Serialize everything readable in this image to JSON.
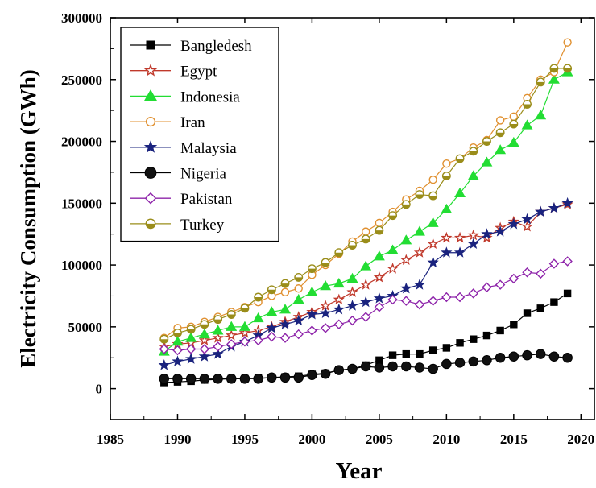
{
  "chart_data": {
    "type": "line",
    "title": "",
    "xlabel": "Year",
    "ylabel": "Electricity Consumption  (GWh)",
    "xlim": [
      1985,
      2021
    ],
    "ylim": [
      -25000,
      300000
    ],
    "xticks": [
      "1985",
      "1990",
      "1995",
      "2000",
      "2005",
      "2010",
      "2015",
      "2020"
    ],
    "yticks": [
      "0",
      "50000",
      "100000",
      "150000",
      "200000",
      "250000",
      "300000"
    ],
    "legend_position": "top-left",
    "grid": false,
    "x": [
      1989,
      1990,
      1991,
      1992,
      1993,
      1994,
      1995,
      1996,
      1997,
      1998,
      1999,
      2000,
      2001,
      2002,
      2003,
      2004,
      2005,
      2006,
      2007,
      2008,
      2009,
      2010,
      2011,
      2012,
      2013,
      2014,
      2015,
      2016,
      2017,
      2018,
      2019
    ],
    "series": [
      {
        "name": "Bangledesh",
        "color": "#000000",
        "marker": "square",
        "values": [
          5000,
          5500,
          6000,
          7000,
          7500,
          8000,
          8000,
          8500,
          9000,
          9500,
          10000,
          11500,
          12500,
          15000,
          16000,
          19000,
          23000,
          27000,
          28000,
          28000,
          31000,
          33000,
          37000,
          40000,
          43000,
          47000,
          52000,
          61000,
          65000,
          70000,
          77000
        ]
      },
      {
        "name": "Egypt",
        "color": "#c0392b",
        "marker": "star-open",
        "values": [
          34000,
          36000,
          37000,
          39000,
          41000,
          43000,
          45000,
          47000,
          50000,
          54000,
          58000,
          62000,
          67000,
          72000,
          78000,
          84000,
          90000,
          97000,
          104000,
          110000,
          117000,
          122000,
          122000,
          124000,
          122000,
          130000,
          135000,
          131000,
          143000,
          146000,
          149000
        ]
      },
      {
        "name": "Indonesia",
        "color": "#22dd33",
        "marker": "triangle",
        "values": [
          30000,
          38000,
          41000,
          44000,
          47000,
          50000,
          50000,
          57000,
          62000,
          64000,
          72000,
          78000,
          83000,
          85000,
          89000,
          99000,
          107000,
          112000,
          120000,
          127000,
          134000,
          145000,
          158000,
          172000,
          183000,
          193000,
          199000,
          213000,
          221000,
          250000,
          256000
        ]
      },
      {
        "name": "Iran",
        "color": "#e09030",
        "marker": "circle-open",
        "values": [
          41000,
          49000,
          50000,
          54000,
          58000,
          62000,
          66000,
          70000,
          75000,
          78000,
          81000,
          92000,
          100000,
          109000,
          119000,
          127000,
          134000,
          143000,
          153000,
          160000,
          169000,
          182000,
          186000,
          195000,
          201000,
          217000,
          220000,
          235000,
          250000,
          256000,
          280000
        ]
      },
      {
        "name": "Malaysia",
        "color": "#1a237e",
        "marker": "star",
        "values": [
          19000,
          22000,
          24000,
          26000,
          28000,
          34000,
          38000,
          43000,
          49000,
          52000,
          55000,
          60000,
          61000,
          64000,
          67000,
          70000,
          73000,
          75000,
          81000,
          84000,
          102000,
          110000,
          110000,
          117000,
          125000,
          127000,
          133000,
          137000,
          143000,
          146000,
          150000
        ]
      },
      {
        "name": "Nigeria",
        "color": "#000000",
        "marker": "ball",
        "values": [
          8000,
          8000,
          8000,
          8000,
          8000,
          8000,
          8000,
          8000,
          9000,
          9000,
          9000,
          11000,
          12000,
          15000,
          16000,
          18000,
          17000,
          18000,
          18000,
          17000,
          16000,
          20000,
          21000,
          22000,
          23000,
          25000,
          26000,
          27000,
          28000,
          26000,
          25000
        ]
      },
      {
        "name": "Pakistan",
        "color": "#8e24aa",
        "marker": "diamond-open",
        "values": [
          32000,
          31000,
          32000,
          32000,
          34000,
          36000,
          38000,
          39000,
          42000,
          41000,
          44000,
          47000,
          49000,
          52000,
          55000,
          58000,
          66000,
          72000,
          71000,
          68000,
          71000,
          74000,
          74000,
          77000,
          82000,
          84000,
          89000,
          94000,
          93000,
          101000,
          103000
        ]
      },
      {
        "name": "Turkey",
        "color": "#9a8d1a",
        "marker": "circle-half",
        "values": [
          40000,
          45000,
          48000,
          52000,
          56000,
          60000,
          65000,
          74000,
          80000,
          85000,
          90000,
          97000,
          102000,
          110000,
          116000,
          121000,
          128000,
          140000,
          149000,
          157000,
          156000,
          172000,
          186000,
          192000,
          200000,
          207000,
          214000,
          230000,
          248000,
          259000,
          259000
        ]
      }
    ]
  }
}
